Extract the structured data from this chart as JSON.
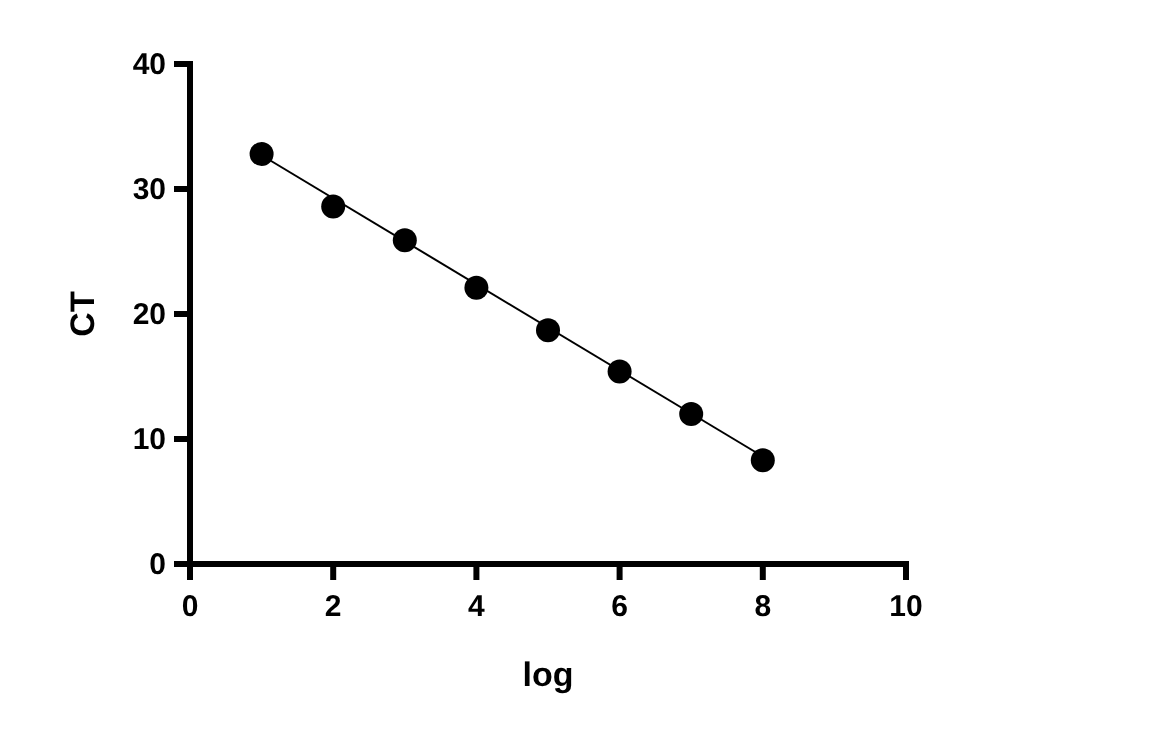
{
  "chart_data": {
    "type": "scatter",
    "xlabel": "log",
    "ylabel": "CT",
    "x": [
      1,
      2,
      3,
      4,
      5,
      6,
      7,
      8
    ],
    "series": [
      {
        "color": "#000000",
        "values": [
          32.8,
          28.6,
          25.9,
          22.1,
          18.7,
          15.4,
          12.0,
          8.3
        ],
        "marker": "circle"
      },
      {
        "type": "line",
        "color": "#000000",
        "x": [
          1,
          8
        ],
        "values": [
          32.7,
          8.6
        ],
        "marker": "none"
      }
    ],
    "xlim": [
      0,
      10
    ],
    "ylim": [
      0,
      40
    ],
    "xticks": [
      0,
      2,
      4,
      6,
      8,
      10
    ],
    "yticks": [
      0,
      10,
      20,
      30,
      40
    ],
    "grid": false
  }
}
